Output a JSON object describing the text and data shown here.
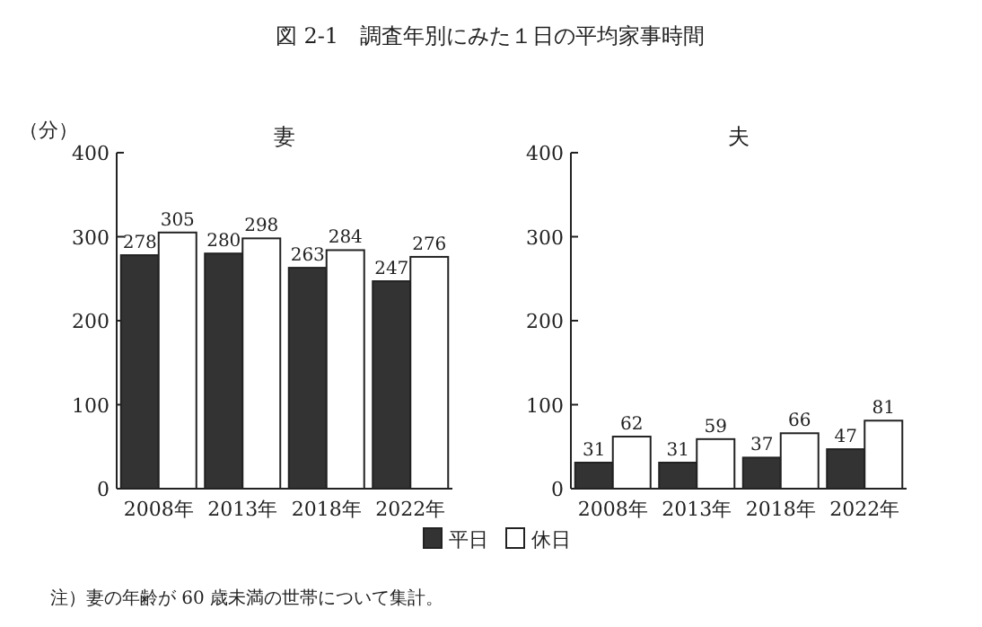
{
  "chart_data": [
    {
      "type": "bar",
      "title": "妻",
      "ylabel": "（分）",
      "annotations": [
        "図 2-1　調査年別にみた１日の平均家事時間",
        "注）妻の年齢が 60 歳未満の世帯について集計。"
      ],
      "categories": [
        "2008年",
        "2013年",
        "2018年",
        "2022年"
      ],
      "series": [
        {
          "name": "平日",
          "color": "#333333",
          "values": [
            278,
            280,
            263,
            247
          ]
        },
        {
          "name": "休日",
          "color": "#ffffff",
          "values": [
            305,
            298,
            284,
            276
          ]
        }
      ],
      "ylim": [
        0,
        400
      ],
      "yticks": [
        0,
        100,
        200,
        300,
        400
      ],
      "data_labels": true,
      "legend": "bottom"
    },
    {
      "type": "bar",
      "title": "夫",
      "categories": [
        "2008年",
        "2013年",
        "2018年",
        "2022年"
      ],
      "series": [
        {
          "color": "#333333",
          "values": [
            31,
            31,
            37,
            47
          ]
        },
        {
          "color": "#ffffff",
          "values": [
            62,
            59,
            66,
            81
          ]
        }
      ],
      "ylim": [
        0,
        400
      ],
      "yticks": [
        0,
        100,
        200,
        300,
        400
      ],
      "data_labels": true
    }
  ]
}
